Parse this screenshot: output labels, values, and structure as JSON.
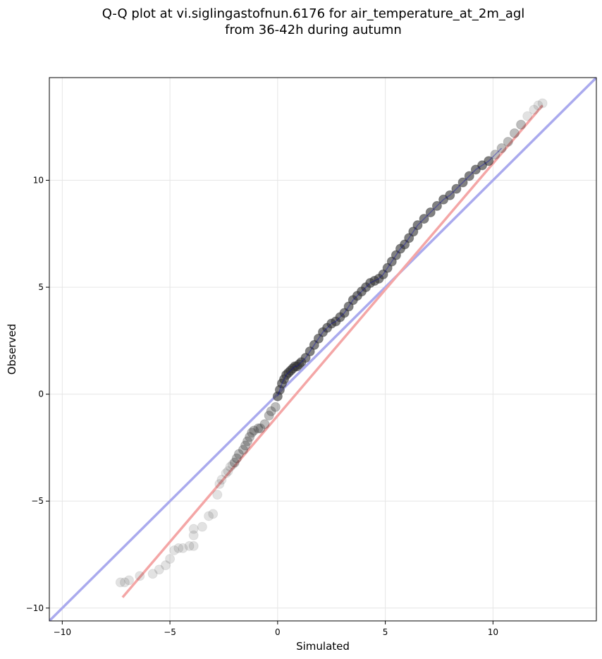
{
  "chart_data": {
    "type": "scatter",
    "title_lines": [
      "Q-Q plot at vi.siglingastofnun.6176 for air_temperature_at_2m_agl",
      "from 36-42h during autumn"
    ],
    "xlabel": "Simulated",
    "ylabel": "Observed",
    "xlim": [
      -10.6,
      14.8
    ],
    "ylim": [
      -10.6,
      14.8
    ],
    "xticks": [
      -10,
      -5,
      0,
      5,
      10
    ],
    "yticks": [
      -10,
      -5,
      0,
      5,
      10
    ],
    "grid": true,
    "colors": {
      "identity_line": "#aaaaee",
      "fit_line": "#f4a6a6",
      "points": "#333333",
      "center_line": "#0000aa"
    },
    "identity_line": {
      "x": [
        -10.6,
        14.8
      ],
      "y": [
        -10.6,
        14.8
      ]
    },
    "fit_line": {
      "x": [
        -7.2,
        12.3
      ],
      "y": [
        -9.5,
        13.5
      ]
    },
    "points": {
      "x": [
        -7.3,
        -7.1,
        -6.9,
        -6.4,
        -5.8,
        -5.5,
        -5.2,
        -5.0,
        -4.8,
        -4.6,
        -4.4,
        -4.1,
        -3.9,
        -3.9,
        -3.9,
        -3.5,
        -3.2,
        -3.0,
        -2.8,
        -2.7,
        -2.6,
        -2.4,
        -2.3,
        -2.2,
        -2.1,
        -2.0,
        -1.9,
        -1.8,
        -1.6,
        -1.5,
        -1.4,
        -1.3,
        -1.2,
        -1.1,
        -0.9,
        -0.8,
        -0.6,
        -0.4,
        -0.3,
        -0.1,
        0.0,
        0.1,
        0.2,
        0.3,
        0.4,
        0.5,
        0.6,
        0.7,
        0.8,
        0.9,
        1.0,
        1.1,
        1.3,
        1.5,
        1.7,
        1.9,
        2.1,
        2.3,
        2.5,
        2.7,
        2.9,
        3.1,
        3.3,
        3.5,
        3.7,
        3.9,
        4.1,
        4.3,
        4.5,
        4.7,
        4.9,
        5.1,
        5.3,
        5.5,
        5.7,
        5.9,
        6.1,
        6.3,
        6.5,
        6.8,
        7.1,
        7.4,
        7.7,
        8.0,
        8.3,
        8.6,
        8.9,
        9.2,
        9.5,
        9.8,
        10.1,
        10.4,
        10.7,
        11.0,
        11.3,
        11.6,
        11.9,
        12.1,
        12.3
      ],
      "y": [
        -8.8,
        -8.8,
        -8.7,
        -8.5,
        -8.4,
        -8.2,
        -8.0,
        -7.7,
        -7.3,
        -7.2,
        -7.2,
        -7.1,
        -6.6,
        -6.3,
        -7.1,
        -6.2,
        -5.7,
        -5.6,
        -4.7,
        -4.2,
        -4.0,
        -3.7,
        -3.6,
        -3.4,
        -3.3,
        -3.2,
        -3.0,
        -2.8,
        -2.6,
        -2.4,
        -2.2,
        -2.0,
        -1.8,
        -1.7,
        -1.6,
        -1.6,
        -1.4,
        -1.0,
        -0.8,
        -0.6,
        -0.1,
        0.2,
        0.5,
        0.7,
        0.9,
        1.0,
        1.1,
        1.2,
        1.3,
        1.3,
        1.4,
        1.5,
        1.7,
        2.0,
        2.3,
        2.6,
        2.9,
        3.1,
        3.3,
        3.4,
        3.6,
        3.8,
        4.1,
        4.4,
        4.6,
        4.8,
        5.0,
        5.2,
        5.3,
        5.4,
        5.6,
        5.9,
        6.2,
        6.5,
        6.8,
        7.0,
        7.3,
        7.6,
        7.9,
        8.2,
        8.5,
        8.8,
        9.1,
        9.3,
        9.6,
        9.9,
        10.2,
        10.5,
        10.7,
        10.9,
        11.2,
        11.5,
        11.8,
        12.2,
        12.6,
        13.0,
        13.3,
        13.5,
        13.6
      ]
    }
  }
}
